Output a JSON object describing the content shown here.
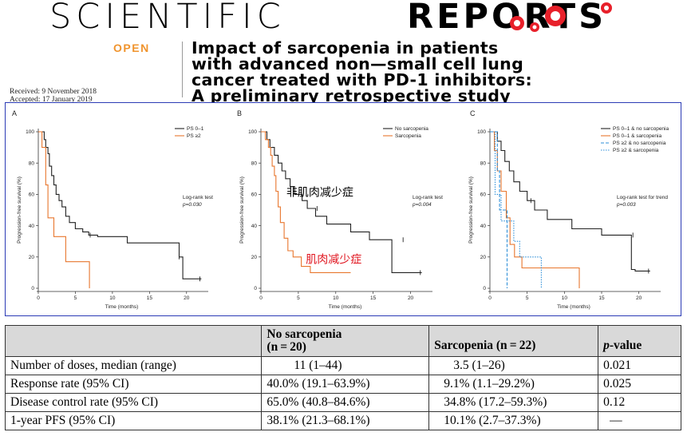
{
  "journal": {
    "name_left": "SCIENTIFIC",
    "name_right": "REPORTS",
    "open_label": "OPEN"
  },
  "article": {
    "title_lines": [
      "Impact of sarcopenia in patients",
      "with advanced non—small cell lung",
      "cancer treated with PD-1 inhibitors:",
      "A preliminary retrospective study"
    ],
    "received": "Received: 9 November 2018",
    "accepted": "Accepted: 17 January 2019"
  },
  "colors": {
    "black_series": "#222222",
    "orange_series": "#e8772e",
    "blue_series": "#2f8fd8",
    "frame": "#2b3bb5",
    "open": "#f0942e",
    "cjk_red": "#e0141e"
  },
  "chart_data": [
    {
      "type": "line",
      "panel": "A",
      "xlabel": "Time (months)",
      "ylabel": "Progression-free survival (%)",
      "xlim": [
        0,
        22.5
      ],
      "ylim": [
        0,
        100
      ],
      "xticks": [
        0,
        5,
        10,
        15,
        20
      ],
      "yticks": [
        0,
        20,
        40,
        60,
        80,
        100
      ],
      "legend_position": "top-right",
      "annotation": [
        "Log-rank test",
        "p=0.030"
      ],
      "series": [
        {
          "name": "PS 0–1",
          "color": "#222222",
          "dash": "",
          "x": [
            0,
            0.8,
            0.8,
            1.0,
            1.0,
            1.3,
            1.3,
            1.5,
            1.5,
            1.8,
            1.8,
            2.1,
            2.1,
            2.4,
            2.4,
            2.8,
            2.8,
            3.2,
            3.2,
            3.7,
            3.7,
            4.2,
            4.2,
            5.0,
            5.0,
            6.0,
            6.0,
            6.8,
            6.8,
            8.0,
            8.0,
            12.0,
            12.0,
            19.0,
            19.0,
            19.5,
            19.5,
            22.0
          ],
          "y": [
            100,
            100,
            95,
            95,
            90,
            90,
            86,
            86,
            78,
            78,
            72,
            72,
            66,
            66,
            60,
            60,
            56,
            56,
            52,
            52,
            46,
            46,
            42,
            42,
            38,
            38,
            36,
            36,
            34,
            34,
            33,
            33,
            29,
            29,
            20,
            20,
            6,
            6
          ]
        },
        {
          "name": "PS ≥2",
          "color": "#e8772e",
          "dash": "",
          "x": [
            0,
            0.5,
            0.5,
            1.0,
            1.0,
            1.3,
            1.3,
            2.1,
            2.1,
            3.7,
            3.7,
            6.9,
            6.9
          ],
          "y": [
            100,
            100,
            90,
            90,
            66,
            66,
            45,
            45,
            33,
            33,
            17,
            17,
            0
          ]
        }
      ],
      "censor_marks": [
        {
          "series": 0,
          "x": [
            7.0,
            19.0,
            21.8
          ],
          "y": [
            34,
            20,
            6
          ]
        }
      ]
    },
    {
      "type": "line",
      "panel": "B",
      "xlabel": "Time (months)",
      "ylabel": "Progression-free survival (%)",
      "xlim": [
        0,
        22.5
      ],
      "ylim": [
        0,
        100
      ],
      "xticks": [
        0,
        5,
        10,
        15,
        20
      ],
      "yticks": [
        0,
        20,
        40,
        60,
        80,
        100
      ],
      "legend_position": "top-right",
      "annotation": [
        "Log-rank test",
        "p=0.004"
      ],
      "cjk_labels": [
        {
          "text": "非肌肉减少症",
          "x": 3.4,
          "y": 59,
          "color": "#000000"
        },
        {
          "text": "肌肉减少症",
          "x": 6.0,
          "y": 16,
          "color": "#e0141e"
        }
      ],
      "series": [
        {
          "name": "No sarcopenia",
          "color": "#222222",
          "dash": "",
          "x": [
            0,
            0.8,
            0.8,
            1.2,
            1.2,
            1.8,
            1.8,
            2.3,
            2.3,
            2.8,
            2.8,
            3.3,
            3.3,
            3.9,
            3.9,
            4.5,
            4.5,
            5.5,
            5.5,
            6.2,
            6.2,
            7.3,
            7.3,
            8.8,
            8.8,
            12.0,
            12.0,
            14.5,
            14.5,
            17.5,
            17.5,
            19.5,
            19.5,
            21.5
          ],
          "y": [
            100,
            100,
            95,
            95,
            90,
            90,
            85,
            85,
            80,
            80,
            75,
            75,
            70,
            70,
            65,
            65,
            60,
            60,
            56,
            56,
            51,
            51,
            46,
            46,
            41,
            41,
            36,
            36,
            31,
            31,
            10,
            10,
            10,
            10
          ]
        },
        {
          "name": "Sarcopenia",
          "color": "#e8772e",
          "dash": "",
          "x": [
            0,
            0.6,
            0.6,
            1.0,
            1.0,
            1.3,
            1.3,
            1.5,
            1.5,
            1.8,
            1.8,
            2.0,
            2.0,
            2.3,
            2.3,
            2.6,
            2.6,
            3.1,
            3.1,
            3.6,
            3.6,
            4.3,
            4.3,
            5.4,
            5.4,
            6.6,
            6.6,
            12.0
          ],
          "y": [
            100,
            100,
            95,
            95,
            90,
            90,
            85,
            85,
            78,
            78,
            72,
            72,
            62,
            62,
            52,
            52,
            42,
            42,
            32,
            32,
            24,
            24,
            20,
            20,
            14,
            14,
            10,
            10
          ]
        }
      ],
      "censor_marks": [
        {
          "series": 0,
          "x": [
            7.5,
            19.0,
            21.3
          ],
          "y": [
            51,
            31,
            10
          ]
        }
      ]
    },
    {
      "type": "line",
      "panel": "C",
      "xlabel": "Time (months)",
      "ylabel": "Progression-free survival (%)",
      "xlim": [
        0,
        22.5
      ],
      "ylim": [
        0,
        100
      ],
      "xticks": [
        0,
        5,
        10,
        15,
        20
      ],
      "yticks": [
        0,
        20,
        40,
        60,
        80,
        100
      ],
      "legend_position": "top-right",
      "annotation": [
        "Log-rank test for trend",
        "p=0.003"
      ],
      "series": [
        {
          "name": "PS 0–1 & no sarcopenia",
          "color": "#222222",
          "dash": "",
          "x": [
            0,
            1.0,
            1.0,
            1.5,
            1.5,
            2.0,
            2.0,
            2.6,
            2.6,
            3.2,
            3.2,
            4.0,
            4.0,
            5.0,
            5.0,
            6.0,
            6.0,
            7.7,
            7.7,
            11.0,
            11.0,
            15.0,
            15.0,
            19.0,
            19.0,
            19.5,
            19.5,
            21.5
          ],
          "y": [
            100,
            100,
            94,
            94,
            88,
            88,
            81,
            81,
            75,
            75,
            68,
            68,
            62,
            62,
            56,
            56,
            50,
            50,
            44,
            44,
            38,
            38,
            34,
            34,
            12,
            12,
            11,
            11
          ]
        },
        {
          "name": "PS 0–1 & sarcopenia",
          "color": "#e8772e",
          "dash": "",
          "x": [
            0,
            0.6,
            0.6,
            1.0,
            1.0,
            1.5,
            1.5,
            2.2,
            2.2,
            2.7,
            2.7,
            3.3,
            3.3,
            4.3,
            4.3,
            5.8,
            5.8,
            12.0,
            12.0
          ],
          "y": [
            100,
            100,
            88,
            88,
            75,
            75,
            62,
            62,
            45,
            45,
            28,
            28,
            20,
            20,
            13,
            13,
            13,
            13,
            0
          ]
        },
        {
          "name": "PS ≥2 & no sarcopenia",
          "color": "#2f8fd8",
          "dash": "4,2",
          "x": [
            0,
            1.0,
            1.0,
            1.3,
            1.3,
            2.3,
            2.3,
            2.3
          ],
          "y": [
            100,
            100,
            75,
            75,
            50,
            50,
            0,
            0
          ]
        },
        {
          "name": "PS ≥2 & sarcopenia",
          "color": "#2f8fd8",
          "dash": "1.5,1.5",
          "x": [
            0,
            0.7,
            0.7,
            1.5,
            1.5,
            3.2,
            3.2,
            4.0,
            4.0,
            6.9,
            6.9
          ],
          "y": [
            100,
            100,
            60,
            60,
            43,
            43,
            30,
            30,
            20,
            20,
            0
          ]
        }
      ],
      "censor_marks": [
        {
          "series": 0,
          "x": [
            5.5,
            19.2,
            21.3
          ],
          "y": [
            56,
            34,
            11
          ]
        }
      ]
    }
  ],
  "table": {
    "headers": [
      "",
      "No sarcopenia\n(n = 20)",
      "Sarcopenia (n = 22)",
      "p-value"
    ],
    "header_col1_line1": "No sarcopenia",
    "header_col1_line2": "(n = 20)",
    "header_col2": "Sarcopenia (n = 22)",
    "header_col3_p": "p",
    "header_col3_rest": "-value",
    "rows": [
      {
        "label": "Number of doses, median (range)",
        "no_sarc": "11 (1–44)",
        "sarc": "3.5 (1–26)",
        "p": "0.021"
      },
      {
        "label": "Response rate (95% CI)",
        "no_sarc": "40.0% (19.1–63.9%)",
        "sarc": "9.1% (1.1–29.2%)",
        "p": "0.025"
      },
      {
        "label": "Disease control rate (95% CI)",
        "no_sarc": "65.0% (40.8–84.6%)",
        "sarc": "34.8% (17.2–59.3%)",
        "p": "0.12"
      },
      {
        "label": "1-year PFS (95% CI)",
        "no_sarc": "38.1% (21.3–68.1%)",
        "sarc": "10.1% (2.7–37.3%)",
        "p": "—"
      }
    ]
  }
}
